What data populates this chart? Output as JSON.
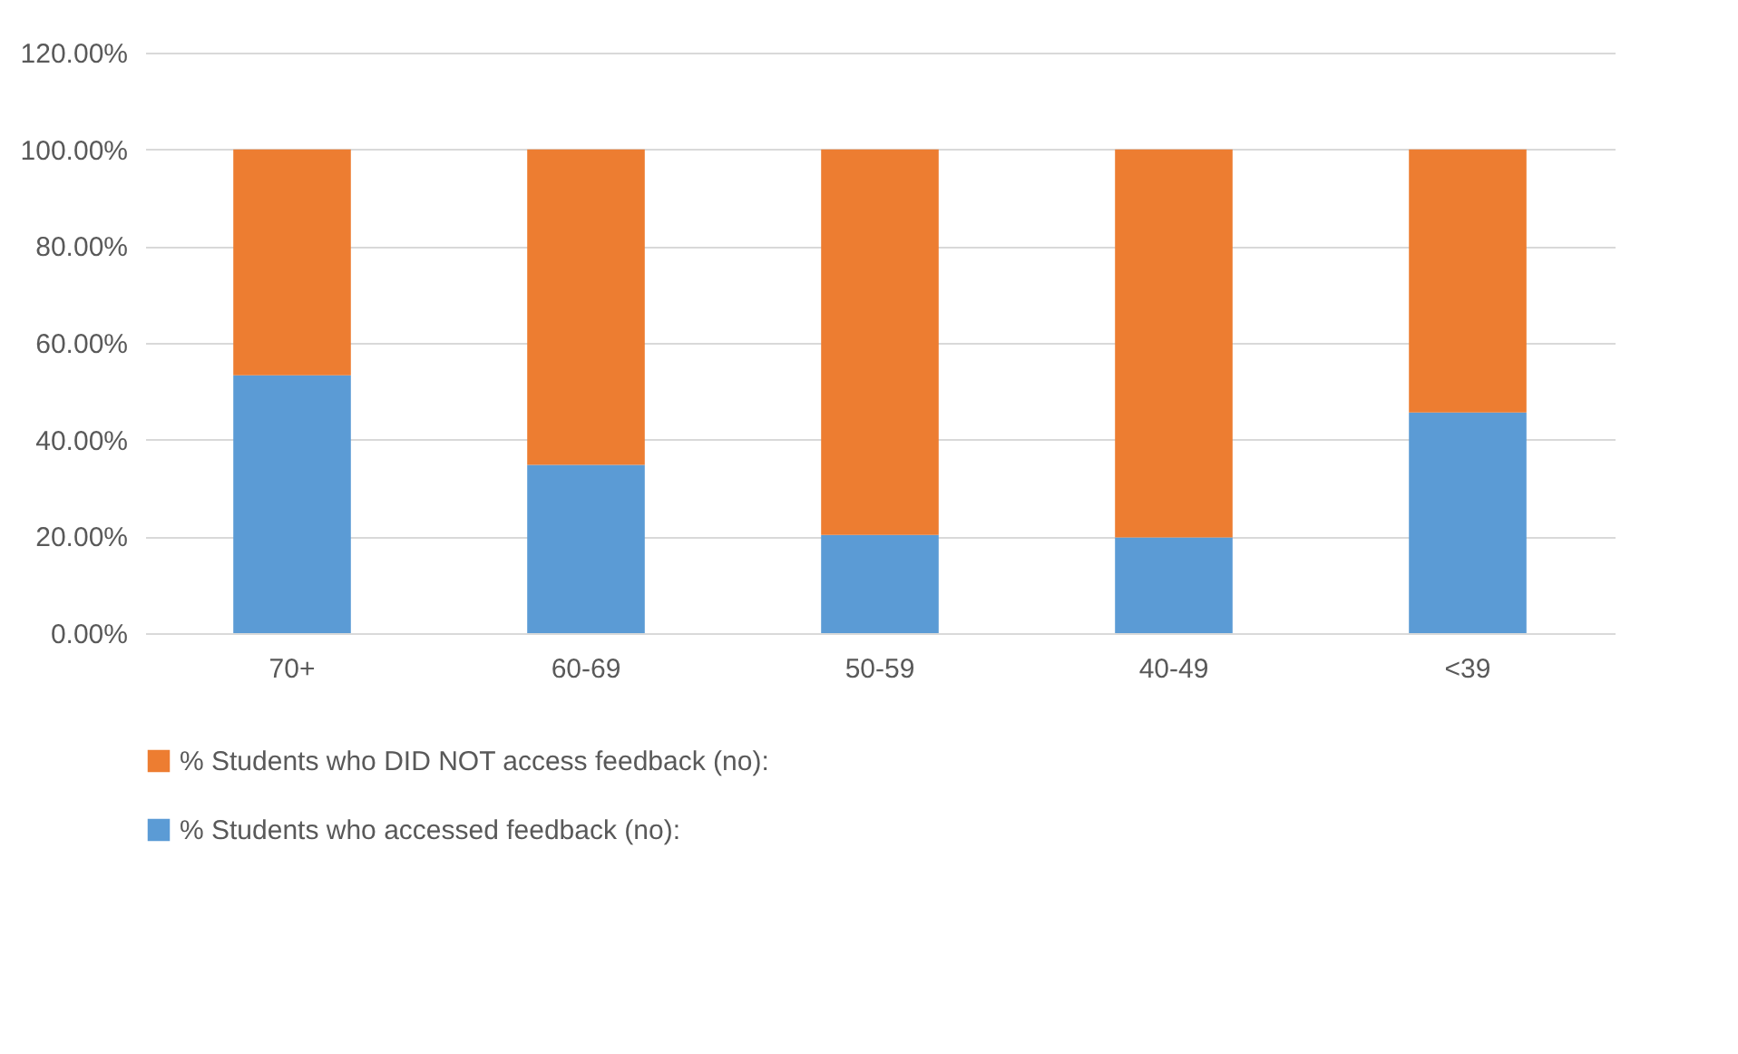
{
  "chart_data": {
    "type": "bar",
    "stacked": true,
    "categories": [
      "70+",
      "60-69",
      "50-59",
      "40-49",
      "<39"
    ],
    "series": [
      {
        "name": "% Students who accessed feedback (no):",
        "color": "#5b9bd5",
        "values": [
          53.3,
          34.8,
          20.3,
          19.8,
          45.6
        ]
      },
      {
        "name": "% Students who DID NOT access feedback (no):",
        "color": "#ed7d31",
        "values": [
          46.7,
          65.2,
          79.7,
          80.2,
          54.4
        ]
      }
    ],
    "ylim": [
      0,
      120
    ],
    "yticks": [
      {
        "value": 0,
        "label": "0.00%"
      },
      {
        "value": 20,
        "label": "20.00%"
      },
      {
        "value": 40,
        "label": "40.00%"
      },
      {
        "value": 60,
        "label": "60.00%"
      },
      {
        "value": 80,
        "label": "80.00%"
      },
      {
        "value": 100,
        "label": "100.00%"
      },
      {
        "value": 120,
        "label": "120.00%"
      }
    ],
    "grid": "y",
    "legend": "bottom"
  }
}
